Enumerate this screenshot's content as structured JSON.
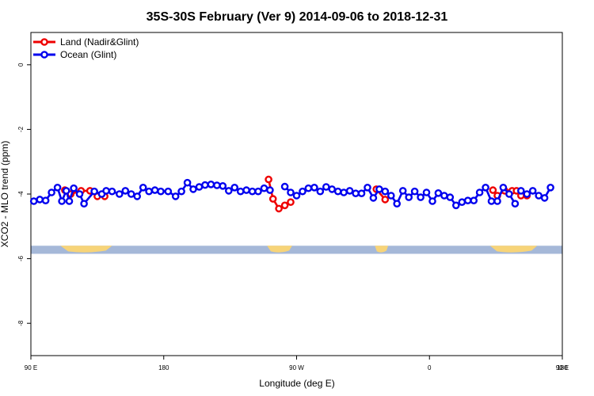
{
  "chart_data": {
    "type": "line",
    "title": "35S-30S February (Ver 9)   2014-09-06 to 2018-12-31",
    "xlabel": "Longitude (deg E)",
    "ylabel": "XCO2 - MLO trend (ppm)",
    "xlim": [
      90,
      450
    ],
    "ylim": [
      -9.0,
      1.0
    ],
    "x_ticks": [
      90,
      180,
      270,
      360,
      450,
      540
    ],
    "x_tick_labels": [
      "90 E",
      "180",
      "90 W",
      "0",
      "90 E",
      "180"
    ],
    "y_ticks": [
      0,
      -2,
      -4,
      -6,
      -8
    ],
    "y_tick_labels": [
      "0",
      "-2",
      "-4",
      "-6",
      "-8"
    ],
    "grid": false,
    "legend_position": "top-left",
    "colors": {
      "land": "#ee0000",
      "ocean": "#0000ee",
      "ocean_band": "#a5b8d8",
      "land_band": "#f7d478"
    },
    "land_band": {
      "y_range": [
        -5.85,
        -5.6
      ],
      "land_segments": [
        [
          110,
          145
        ],
        [
          250,
          267
        ],
        [
          323,
          332
        ],
        [
          401,
          433
        ]
      ]
    },
    "series": [
      {
        "name": "Land (Nadir&Glint)",
        "key": "land",
        "segments": [
          [
            [
              113,
              -3.88
            ],
            [
              117,
              -4.0
            ],
            [
              124,
              -3.9
            ],
            [
              130,
              -3.9
            ],
            [
              135,
              -4.07
            ],
            [
              140,
              -4.07
            ]
          ],
          [
            [
              251,
              -3.55
            ],
            [
              254,
              -4.15
            ],
            [
              258,
              -4.45
            ],
            [
              262,
              -4.35
            ],
            [
              266,
              -4.25
            ]
          ],
          [
            [
              324,
              -3.85
            ],
            [
              330,
              -4.17
            ]
          ],
          [
            [
              403,
              -3.88
            ],
            [
              406,
              -4.05
            ],
            [
              411,
              -3.9
            ],
            [
              416,
              -3.9
            ],
            [
              419,
              -3.9
            ],
            [
              422,
              -4.05
            ],
            [
              426,
              -4.05
            ]
          ]
        ]
      },
      {
        "name": "Ocean (Glint)",
        "key": "ocean",
        "segments": [
          [
            [
              92,
              -4.22
            ],
            [
              96,
              -4.17
            ],
            [
              100,
              -4.2
            ],
            [
              104,
              -3.95
            ],
            [
              108,
              -3.8
            ],
            [
              111,
              -4.22
            ],
            [
              114,
              -3.9
            ],
            [
              116,
              -4.22
            ],
            [
              119,
              -3.82
            ],
            [
              123,
              -4.0
            ],
            [
              126,
              -4.3
            ],
            [
              133,
              -3.92
            ],
            [
              138,
              -4.0
            ],
            [
              141,
              -3.9
            ],
            [
              145,
              -3.92
            ],
            [
              150,
              -4.0
            ],
            [
              154,
              -3.9
            ],
            [
              158,
              -4.0
            ],
            [
              162,
              -4.07
            ],
            [
              166,
              -3.8
            ],
            [
              170,
              -3.92
            ],
            [
              174,
              -3.88
            ],
            [
              178,
              -3.92
            ],
            [
              183,
              -3.92
            ],
            [
              188,
              -4.07
            ],
            [
              192,
              -3.92
            ],
            [
              196,
              -3.65
            ],
            [
              200,
              -3.85
            ],
            [
              204,
              -3.78
            ],
            [
              208,
              -3.72
            ],
            [
              212,
              -3.7
            ],
            [
              216,
              -3.73
            ],
            [
              220,
              -3.75
            ],
            [
              224,
              -3.9
            ],
            [
              228,
              -3.8
            ],
            [
              232,
              -3.92
            ],
            [
              236,
              -3.88
            ],
            [
              240,
              -3.92
            ],
            [
              244,
              -3.92
            ],
            [
              248,
              -3.82
            ],
            [
              252,
              -3.88
            ]
          ],
          [
            [
              262,
              -3.77
            ],
            [
              266,
              -3.95
            ],
            [
              270,
              -4.05
            ],
            [
              274,
              -3.92
            ],
            [
              278,
              -3.82
            ],
            [
              282,
              -3.8
            ],
            [
              286,
              -3.92
            ],
            [
              290,
              -3.78
            ],
            [
              294,
              -3.85
            ],
            [
              298,
              -3.92
            ],
            [
              302,
              -3.95
            ],
            [
              306,
              -3.9
            ],
            [
              310,
              -3.98
            ],
            [
              314,
              -3.98
            ],
            [
              318,
              -3.8
            ],
            [
              322,
              -4.12
            ],
            [
              326,
              -3.85
            ],
            [
              330,
              -3.92
            ],
            [
              334,
              -4.05
            ],
            [
              338,
              -4.3
            ],
            [
              342,
              -3.9
            ],
            [
              346,
              -4.1
            ],
            [
              350,
              -3.92
            ],
            [
              354,
              -4.1
            ],
            [
              358,
              -3.95
            ],
            [
              362,
              -4.22
            ],
            [
              366,
              -3.97
            ],
            [
              370,
              -4.05
            ],
            [
              374,
              -4.1
            ],
            [
              378,
              -4.35
            ],
            [
              382,
              -4.25
            ],
            [
              386,
              -4.2
            ],
            [
              390,
              -4.2
            ],
            [
              394,
              -3.95
            ],
            [
              398,
              -3.8
            ],
            [
              402,
              -4.22
            ],
            [
              406,
              -4.22
            ],
            [
              410,
              -3.8
            ],
            [
              414,
              -4.0
            ],
            [
              418,
              -4.3
            ]
          ],
          [
            [
              422,
              -3.9
            ],
            [
              426,
              -4.0
            ],
            [
              430,
              -3.9
            ],
            [
              434,
              -4.05
            ],
            [
              438,
              -4.12
            ],
            [
              442,
              -3.8
            ]
          ]
        ]
      }
    ]
  }
}
